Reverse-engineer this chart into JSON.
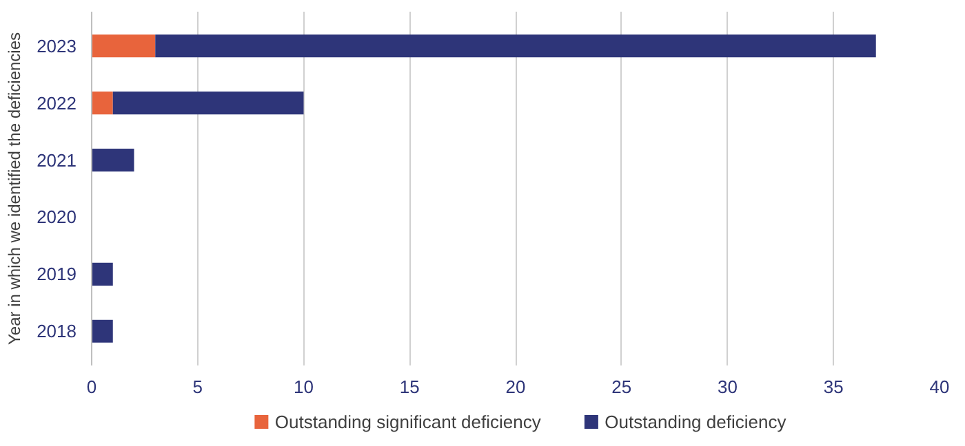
{
  "chart_data": {
    "type": "bar",
    "orientation": "horizontal",
    "stacked": true,
    "ylabel": "Year in which we identified the deficiencies",
    "categories": [
      "2023",
      "2022",
      "2021",
      "2020",
      "2019",
      "2018"
    ],
    "series": [
      {
        "name": "Outstanding significant deficiency",
        "color": "#e8643c",
        "values": [
          3,
          1,
          0,
          0,
          0,
          0
        ]
      },
      {
        "name": "Outstanding deficiency",
        "color": "#2e3579",
        "values": [
          34,
          9,
          2,
          0,
          1,
          1
        ]
      }
    ],
    "xlim": [
      0,
      40
    ],
    "xticks": [
      0,
      5,
      10,
      15,
      20,
      25,
      30,
      35,
      40
    ],
    "grid": "x",
    "legend": "bottom"
  }
}
